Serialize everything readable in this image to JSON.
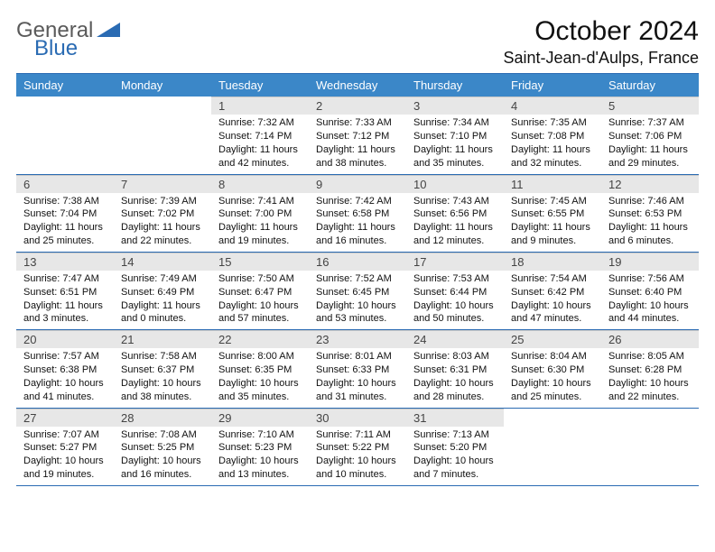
{
  "logo": {
    "line1": "General",
    "line2": "Blue"
  },
  "title": "October 2024",
  "location": "Saint-Jean-d'Aulps, France",
  "colors": {
    "header_bg": "#3b87c8",
    "header_border": "#2a6bb3",
    "daynum_bg": "#e7e7e7",
    "text": "#111111",
    "logo_gray": "#5a5a5a",
    "logo_blue": "#2a6bb3"
  },
  "weekdays": [
    "Sunday",
    "Monday",
    "Tuesday",
    "Wednesday",
    "Thursday",
    "Friday",
    "Saturday"
  ],
  "leading_blanks": 2,
  "days": [
    {
      "n": "1",
      "sunrise": "Sunrise: 7:32 AM",
      "sunset": "Sunset: 7:14 PM",
      "day1": "Daylight: 11 hours",
      "day2": "and 42 minutes."
    },
    {
      "n": "2",
      "sunrise": "Sunrise: 7:33 AM",
      "sunset": "Sunset: 7:12 PM",
      "day1": "Daylight: 11 hours",
      "day2": "and 38 minutes."
    },
    {
      "n": "3",
      "sunrise": "Sunrise: 7:34 AM",
      "sunset": "Sunset: 7:10 PM",
      "day1": "Daylight: 11 hours",
      "day2": "and 35 minutes."
    },
    {
      "n": "4",
      "sunrise": "Sunrise: 7:35 AM",
      "sunset": "Sunset: 7:08 PM",
      "day1": "Daylight: 11 hours",
      "day2": "and 32 minutes."
    },
    {
      "n": "5",
      "sunrise": "Sunrise: 7:37 AM",
      "sunset": "Sunset: 7:06 PM",
      "day1": "Daylight: 11 hours",
      "day2": "and 29 minutes."
    },
    {
      "n": "6",
      "sunrise": "Sunrise: 7:38 AM",
      "sunset": "Sunset: 7:04 PM",
      "day1": "Daylight: 11 hours",
      "day2": "and 25 minutes."
    },
    {
      "n": "7",
      "sunrise": "Sunrise: 7:39 AM",
      "sunset": "Sunset: 7:02 PM",
      "day1": "Daylight: 11 hours",
      "day2": "and 22 minutes."
    },
    {
      "n": "8",
      "sunrise": "Sunrise: 7:41 AM",
      "sunset": "Sunset: 7:00 PM",
      "day1": "Daylight: 11 hours",
      "day2": "and 19 minutes."
    },
    {
      "n": "9",
      "sunrise": "Sunrise: 7:42 AM",
      "sunset": "Sunset: 6:58 PM",
      "day1": "Daylight: 11 hours",
      "day2": "and 16 minutes."
    },
    {
      "n": "10",
      "sunrise": "Sunrise: 7:43 AM",
      "sunset": "Sunset: 6:56 PM",
      "day1": "Daylight: 11 hours",
      "day2": "and 12 minutes."
    },
    {
      "n": "11",
      "sunrise": "Sunrise: 7:45 AM",
      "sunset": "Sunset: 6:55 PM",
      "day1": "Daylight: 11 hours",
      "day2": "and 9 minutes."
    },
    {
      "n": "12",
      "sunrise": "Sunrise: 7:46 AM",
      "sunset": "Sunset: 6:53 PM",
      "day1": "Daylight: 11 hours",
      "day2": "and 6 minutes."
    },
    {
      "n": "13",
      "sunrise": "Sunrise: 7:47 AM",
      "sunset": "Sunset: 6:51 PM",
      "day1": "Daylight: 11 hours",
      "day2": "and 3 minutes."
    },
    {
      "n": "14",
      "sunrise": "Sunrise: 7:49 AM",
      "sunset": "Sunset: 6:49 PM",
      "day1": "Daylight: 11 hours",
      "day2": "and 0 minutes."
    },
    {
      "n": "15",
      "sunrise": "Sunrise: 7:50 AM",
      "sunset": "Sunset: 6:47 PM",
      "day1": "Daylight: 10 hours",
      "day2": "and 57 minutes."
    },
    {
      "n": "16",
      "sunrise": "Sunrise: 7:52 AM",
      "sunset": "Sunset: 6:45 PM",
      "day1": "Daylight: 10 hours",
      "day2": "and 53 minutes."
    },
    {
      "n": "17",
      "sunrise": "Sunrise: 7:53 AM",
      "sunset": "Sunset: 6:44 PM",
      "day1": "Daylight: 10 hours",
      "day2": "and 50 minutes."
    },
    {
      "n": "18",
      "sunrise": "Sunrise: 7:54 AM",
      "sunset": "Sunset: 6:42 PM",
      "day1": "Daylight: 10 hours",
      "day2": "and 47 minutes."
    },
    {
      "n": "19",
      "sunrise": "Sunrise: 7:56 AM",
      "sunset": "Sunset: 6:40 PM",
      "day1": "Daylight: 10 hours",
      "day2": "and 44 minutes."
    },
    {
      "n": "20",
      "sunrise": "Sunrise: 7:57 AM",
      "sunset": "Sunset: 6:38 PM",
      "day1": "Daylight: 10 hours",
      "day2": "and 41 minutes."
    },
    {
      "n": "21",
      "sunrise": "Sunrise: 7:58 AM",
      "sunset": "Sunset: 6:37 PM",
      "day1": "Daylight: 10 hours",
      "day2": "and 38 minutes."
    },
    {
      "n": "22",
      "sunrise": "Sunrise: 8:00 AM",
      "sunset": "Sunset: 6:35 PM",
      "day1": "Daylight: 10 hours",
      "day2": "and 35 minutes."
    },
    {
      "n": "23",
      "sunrise": "Sunrise: 8:01 AM",
      "sunset": "Sunset: 6:33 PM",
      "day1": "Daylight: 10 hours",
      "day2": "and 31 minutes."
    },
    {
      "n": "24",
      "sunrise": "Sunrise: 8:03 AM",
      "sunset": "Sunset: 6:31 PM",
      "day1": "Daylight: 10 hours",
      "day2": "and 28 minutes."
    },
    {
      "n": "25",
      "sunrise": "Sunrise: 8:04 AM",
      "sunset": "Sunset: 6:30 PM",
      "day1": "Daylight: 10 hours",
      "day2": "and 25 minutes."
    },
    {
      "n": "26",
      "sunrise": "Sunrise: 8:05 AM",
      "sunset": "Sunset: 6:28 PM",
      "day1": "Daylight: 10 hours",
      "day2": "and 22 minutes."
    },
    {
      "n": "27",
      "sunrise": "Sunrise: 7:07 AM",
      "sunset": "Sunset: 5:27 PM",
      "day1": "Daylight: 10 hours",
      "day2": "and 19 minutes."
    },
    {
      "n": "28",
      "sunrise": "Sunrise: 7:08 AM",
      "sunset": "Sunset: 5:25 PM",
      "day1": "Daylight: 10 hours",
      "day2": "and 16 minutes."
    },
    {
      "n": "29",
      "sunrise": "Sunrise: 7:10 AM",
      "sunset": "Sunset: 5:23 PM",
      "day1": "Daylight: 10 hours",
      "day2": "and 13 minutes."
    },
    {
      "n": "30",
      "sunrise": "Sunrise: 7:11 AM",
      "sunset": "Sunset: 5:22 PM",
      "day1": "Daylight: 10 hours",
      "day2": "and 10 minutes."
    },
    {
      "n": "31",
      "sunrise": "Sunrise: 7:13 AM",
      "sunset": "Sunset: 5:20 PM",
      "day1": "Daylight: 10 hours",
      "day2": "and 7 minutes."
    }
  ]
}
